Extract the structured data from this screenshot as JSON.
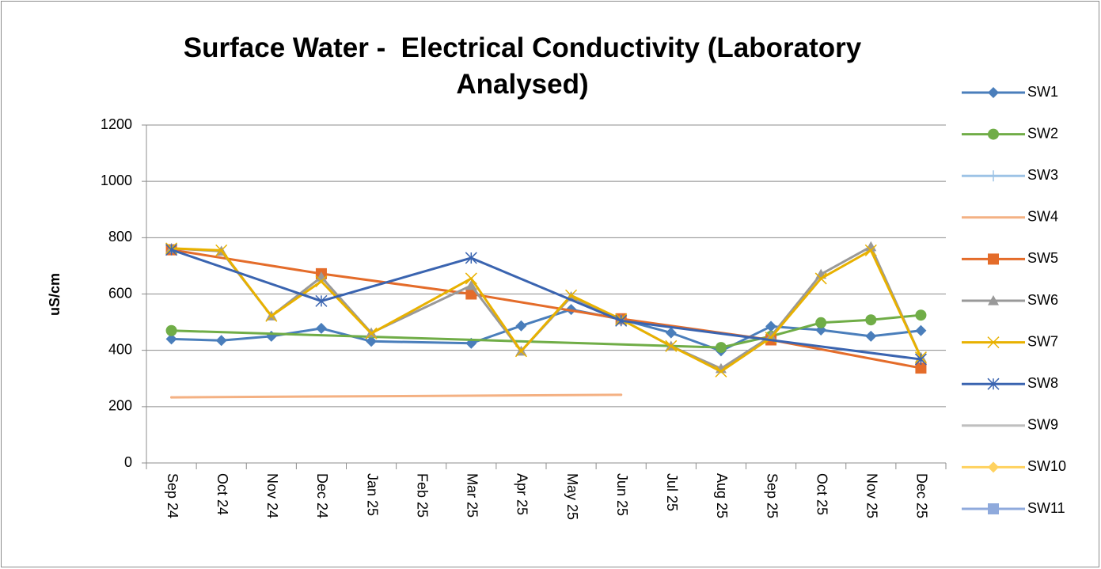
{
  "chart_data": {
    "type": "line",
    "title": "Surface Water -  Electrical Conductivity (Laboratory Analysed)",
    "y_label": "uS/cm",
    "categories": [
      "Sep 24",
      "Oct 24",
      "Nov 24",
      "Dec 24",
      "Jan 25",
      "Feb 25",
      "Mar 25",
      "Apr 25",
      "May 25",
      "Jun 25",
      "Jul 25",
      "Aug 25",
      "Sep 25",
      "Oct 25",
      "Nov 25",
      "Dec 25"
    ],
    "ylim": [
      0,
      1200
    ],
    "yticks": [
      0,
      200,
      400,
      600,
      800,
      1000,
      1200
    ],
    "grid": true,
    "legend": "right",
    "connect_gaps": true,
    "series": [
      {
        "name": "SW1",
        "color": "#4a7ebb",
        "marker": "diamond",
        "values": [
          440,
          435,
          450,
          478,
          432,
          null,
          425,
          487,
          545,
          510,
          462,
          398,
          485,
          472,
          450,
          470
        ]
      },
      {
        "name": "SW2",
        "color": "#70ad47",
        "marker": "circle",
        "values": [
          470,
          null,
          null,
          null,
          null,
          null,
          null,
          null,
          null,
          null,
          null,
          410,
          450,
          498,
          508,
          525
        ]
      },
      {
        "name": "SW3",
        "color": "#9dc3e6",
        "marker": "plus",
        "values": [
          null,
          null,
          null,
          null,
          null,
          null,
          null,
          null,
          null,
          null,
          null,
          null,
          null,
          null,
          null,
          null
        ]
      },
      {
        "name": "SW4",
        "color": "#f4b183",
        "marker": "dash",
        "values": [
          233,
          null,
          null,
          null,
          null,
          null,
          null,
          null,
          null,
          242,
          null,
          null,
          null,
          null,
          null,
          null
        ]
      },
      {
        "name": "SW5",
        "color": "#e46c2a",
        "marker": "square",
        "values": [
          757,
          null,
          null,
          672,
          null,
          null,
          600,
          null,
          null,
          512,
          null,
          null,
          437,
          null,
          null,
          337
        ]
      },
      {
        "name": "SW6",
        "color": "#999999",
        "marker": "triangle",
        "values": [
          762,
          752,
          522,
          660,
          462,
          null,
          630,
          397,
          590,
          510,
          415,
          335,
          450,
          670,
          768,
          375
        ]
      },
      {
        "name": "SW7",
        "color": "#e8b100",
        "marker": "x",
        "values": [
          762,
          755,
          522,
          645,
          460,
          null,
          655,
          397,
          595,
          510,
          415,
          325,
          445,
          655,
          755,
          375
        ]
      },
      {
        "name": "SW8",
        "color": "#3a64b0",
        "marker": "star",
        "values": [
          757,
          null,
          null,
          575,
          null,
          null,
          728,
          null,
          null,
          505,
          null,
          null,
          null,
          null,
          null,
          368
        ]
      },
      {
        "name": "SW9",
        "color": "#bfbfbf",
        "marker": "dash",
        "values": [
          null,
          null,
          null,
          null,
          null,
          null,
          null,
          null,
          null,
          null,
          null,
          null,
          null,
          null,
          null,
          null
        ]
      },
      {
        "name": "SW10",
        "color": "#ffd25f",
        "marker": "diamond",
        "values": [
          null,
          null,
          null,
          null,
          null,
          null,
          null,
          null,
          null,
          null,
          null,
          null,
          null,
          null,
          null,
          null
        ]
      },
      {
        "name": "SW11",
        "color": "#8faadc",
        "marker": "square",
        "values": [
          null,
          null,
          null,
          null,
          null,
          null,
          null,
          null,
          null,
          null,
          null,
          null,
          null,
          null,
          null,
          null
        ]
      }
    ]
  }
}
